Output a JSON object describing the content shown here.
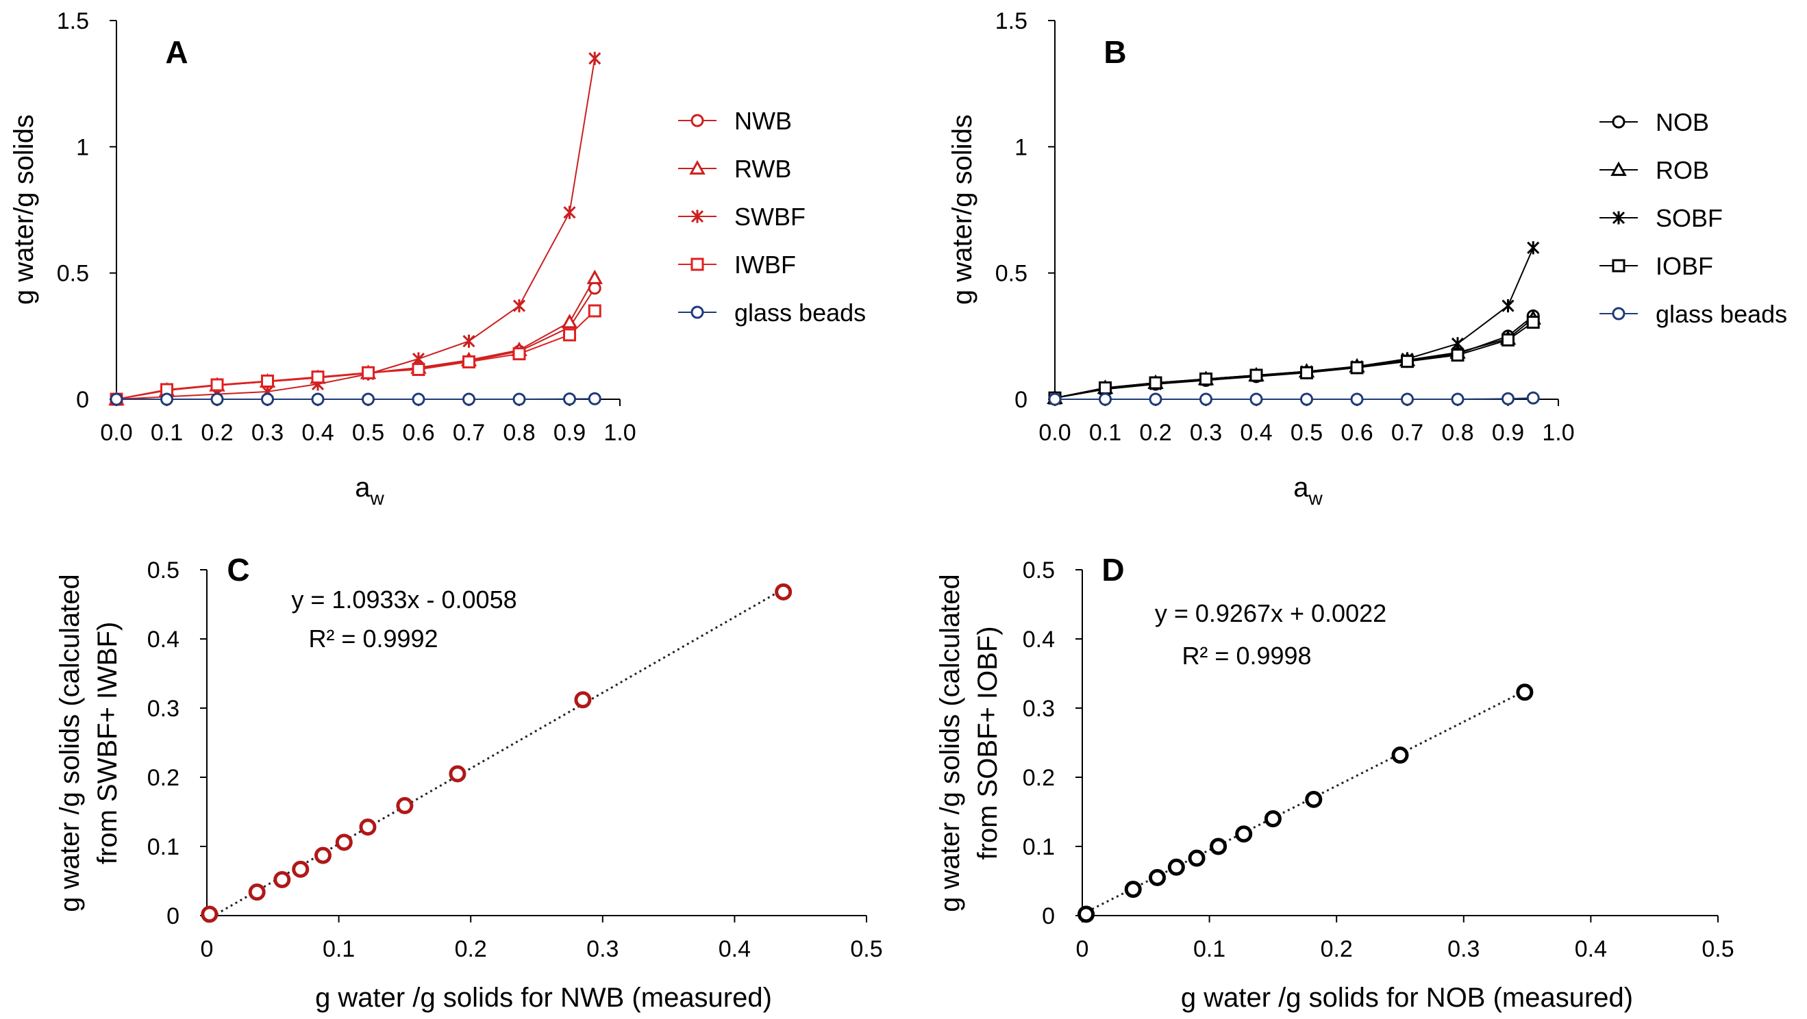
{
  "chart_data": [
    {
      "id": "A",
      "type": "line",
      "panel_label": "A",
      "xlabel": "a",
      "xlabel_sub": "w",
      "ylabel": "g water/g solids",
      "xlim": [
        0,
        1
      ],
      "ylim": [
        0,
        1.5
      ],
      "x_ticks": [
        "0.0",
        "0.1",
        "0.2",
        "0.3",
        "0.4",
        "0.5",
        "0.6",
        "0.7",
        "0.8",
        "0.9",
        "1.0"
      ],
      "x_tick_values": [
        0,
        0.1,
        0.2,
        0.3,
        0.4,
        0.5,
        0.6,
        0.7,
        0.8,
        0.9,
        1.0
      ],
      "y_ticks": [
        "0",
        "0.5",
        "1",
        "1.5"
      ],
      "y_tick_values": [
        0,
        0.5,
        1,
        1.5
      ],
      "legend_position": "right",
      "series": [
        {
          "name": "NWB",
          "marker": "circle",
          "color": "#cc1f1f",
          "x": [
            0,
            0.1,
            0.2,
            0.3,
            0.4,
            0.5,
            0.6,
            0.7,
            0.8,
            0.9,
            0.95
          ],
          "y": [
            0,
            0.036,
            0.055,
            0.07,
            0.085,
            0.103,
            0.122,
            0.15,
            0.19,
            0.285,
            0.44
          ]
        },
        {
          "name": "RWB",
          "marker": "triangle",
          "color": "#cc1f1f",
          "x": [
            0,
            0.1,
            0.2,
            0.3,
            0.4,
            0.5,
            0.6,
            0.7,
            0.8,
            0.9,
            0.95
          ],
          "y": [
            0,
            0.035,
            0.055,
            0.07,
            0.085,
            0.104,
            0.125,
            0.155,
            0.195,
            0.305,
            0.48
          ]
        },
        {
          "name": "SWBF",
          "marker": "star",
          "color": "#cc1f1f",
          "x": [
            0,
            0.1,
            0.2,
            0.3,
            0.4,
            0.5,
            0.6,
            0.7,
            0.8,
            0.9,
            0.95
          ],
          "y": [
            0,
            0.01,
            0.02,
            0.03,
            0.06,
            0.1,
            0.16,
            0.23,
            0.37,
            0.74,
            1.35
          ]
        },
        {
          "name": "IWBF",
          "marker": "square",
          "color": "#e02020",
          "x": [
            0,
            0.1,
            0.2,
            0.3,
            0.4,
            0.5,
            0.6,
            0.7,
            0.8,
            0.9,
            0.95
          ],
          "y": [
            0,
            0.038,
            0.057,
            0.072,
            0.088,
            0.105,
            0.118,
            0.148,
            0.18,
            0.255,
            0.35
          ]
        },
        {
          "name": "glass beads",
          "marker": "circle",
          "color": "#1f3a7a",
          "x": [
            0,
            0.1,
            0.2,
            0.3,
            0.4,
            0.5,
            0.6,
            0.7,
            0.8,
            0.9,
            0.95
          ],
          "y": [
            0,
            0,
            0,
            0,
            0,
            0,
            0,
            0,
            0,
            0.001,
            0.002
          ]
        }
      ]
    },
    {
      "id": "B",
      "type": "line",
      "panel_label": "B",
      "xlabel": "a",
      "xlabel_sub": "w",
      "ylabel": "g water/g solids",
      "xlim": [
        0,
        1
      ],
      "ylim": [
        0,
        1.5
      ],
      "x_ticks": [
        "0.0",
        "0.1",
        "0.2",
        "0.3",
        "0.4",
        "0.5",
        "0.6",
        "0.7",
        "0.8",
        "0.9",
        "1.0"
      ],
      "x_tick_values": [
        0,
        0.1,
        0.2,
        0.3,
        0.4,
        0.5,
        0.6,
        0.7,
        0.8,
        0.9,
        1.0
      ],
      "y_ticks": [
        "0",
        "0.5",
        "1",
        "1.5"
      ],
      "y_tick_values": [
        0,
        0.5,
        1,
        1.5
      ],
      "legend_position": "right",
      "series": [
        {
          "name": "NOB",
          "marker": "circle",
          "color": "#000000",
          "x": [
            0,
            0.1,
            0.2,
            0.3,
            0.4,
            0.5,
            0.6,
            0.7,
            0.8,
            0.9,
            0.95
          ],
          "y": [
            0.005,
            0.04,
            0.06,
            0.075,
            0.09,
            0.105,
            0.125,
            0.15,
            0.18,
            0.25,
            0.33
          ]
        },
        {
          "name": "ROB",
          "marker": "triangle",
          "color": "#000000",
          "x": [
            0,
            0.1,
            0.2,
            0.3,
            0.4,
            0.5,
            0.6,
            0.7,
            0.8,
            0.9,
            0.95
          ],
          "y": [
            0.005,
            0.045,
            0.065,
            0.08,
            0.095,
            0.11,
            0.13,
            0.155,
            0.185,
            0.24,
            0.32
          ]
        },
        {
          "name": "SOBF",
          "marker": "star",
          "color": "#000000",
          "x": [
            0,
            0.1,
            0.2,
            0.3,
            0.4,
            0.5,
            0.6,
            0.7,
            0.8,
            0.9,
            0.95
          ],
          "y": [
            0.005,
            0.04,
            0.06,
            0.08,
            0.095,
            0.11,
            0.13,
            0.16,
            0.22,
            0.37,
            0.6
          ]
        },
        {
          "name": "IOBF",
          "marker": "square",
          "color": "#000000",
          "x": [
            0,
            0.1,
            0.2,
            0.3,
            0.4,
            0.5,
            0.6,
            0.7,
            0.8,
            0.9,
            0.95
          ],
          "y": [
            0.005,
            0.045,
            0.065,
            0.08,
            0.095,
            0.105,
            0.125,
            0.15,
            0.175,
            0.235,
            0.305
          ]
        },
        {
          "name": "glass beads",
          "marker": "circle",
          "color": "#1f3a7a",
          "x": [
            0,
            0.1,
            0.2,
            0.3,
            0.4,
            0.5,
            0.6,
            0.7,
            0.8,
            0.9,
            0.95
          ],
          "y": [
            0,
            0,
            0,
            0,
            0,
            0,
            0,
            0,
            0,
            0.002,
            0.005
          ]
        }
      ]
    },
    {
      "id": "C",
      "type": "scatter",
      "panel_label": "C",
      "xlabel": "g water /g solids for NWB (measured)",
      "ylabel_line1": "g water /g solids (calculated",
      "ylabel_line2": "from SWBF+ IWBF)",
      "xlim": [
        0,
        0.5
      ],
      "ylim": [
        0,
        0.5
      ],
      "x_ticks": [
        "0",
        "0.1",
        "0.2",
        "0.3",
        "0.4",
        "0.5"
      ],
      "x_tick_values": [
        0,
        0.1,
        0.2,
        0.3,
        0.4,
        0.5
      ],
      "y_ticks": [
        "0",
        "0.1",
        "0.2",
        "0.3",
        "0.4",
        "0.5"
      ],
      "y_tick_values": [
        0,
        0.1,
        0.2,
        0.3,
        0.4,
        0.5
      ],
      "marker_color": "#b01818",
      "equation": "y = 1.0933x - 0.0058",
      "r_squared": "R² = 0.9992",
      "trendline": {
        "slope": 1.0933,
        "intercept": -0.0058,
        "x_range": [
          0,
          0.44
        ]
      },
      "points": {
        "x": [
          0.002,
          0.038,
          0.057,
          0.071,
          0.088,
          0.104,
          0.122,
          0.15,
          0.19,
          0.285,
          0.437
        ],
        "y": [
          0.002,
          0.034,
          0.052,
          0.067,
          0.087,
          0.106,
          0.128,
          0.159,
          0.205,
          0.312,
          0.468
        ]
      }
    },
    {
      "id": "D",
      "type": "scatter",
      "panel_label": "D",
      "xlabel": "g water /g solids for NOB (measured)",
      "ylabel_line1": "g water /g solids (calculated",
      "ylabel_line2": "from SOBF+ IOBF)",
      "xlim": [
        0,
        0.5
      ],
      "ylim": [
        0,
        0.5
      ],
      "x_ticks": [
        "0",
        "0.1",
        "0.2",
        "0.3",
        "0.4",
        "0.5"
      ],
      "x_tick_values": [
        0,
        0.1,
        0.2,
        0.3,
        0.4,
        0.5
      ],
      "y_ticks": [
        "0",
        "0.1",
        "0.2",
        "0.3",
        "0.4",
        "0.5"
      ],
      "y_tick_values": [
        0,
        0.1,
        0.2,
        0.3,
        0.4,
        0.5
      ],
      "marker_color": "#000000",
      "equation": "y = 0.9267x + 0.0022",
      "r_squared": "R² = 0.9998",
      "trendline": {
        "slope": 0.9267,
        "intercept": 0.0022,
        "x_range": [
          0,
          0.35
        ]
      },
      "points": {
        "x": [
          0.003,
          0.04,
          0.059,
          0.074,
          0.09,
          0.107,
          0.127,
          0.15,
          0.182,
          0.25,
          0.348
        ],
        "y": [
          0.002,
          0.038,
          0.055,
          0.07,
          0.083,
          0.1,
          0.118,
          0.14,
          0.168,
          0.232,
          0.323
        ]
      }
    }
  ]
}
